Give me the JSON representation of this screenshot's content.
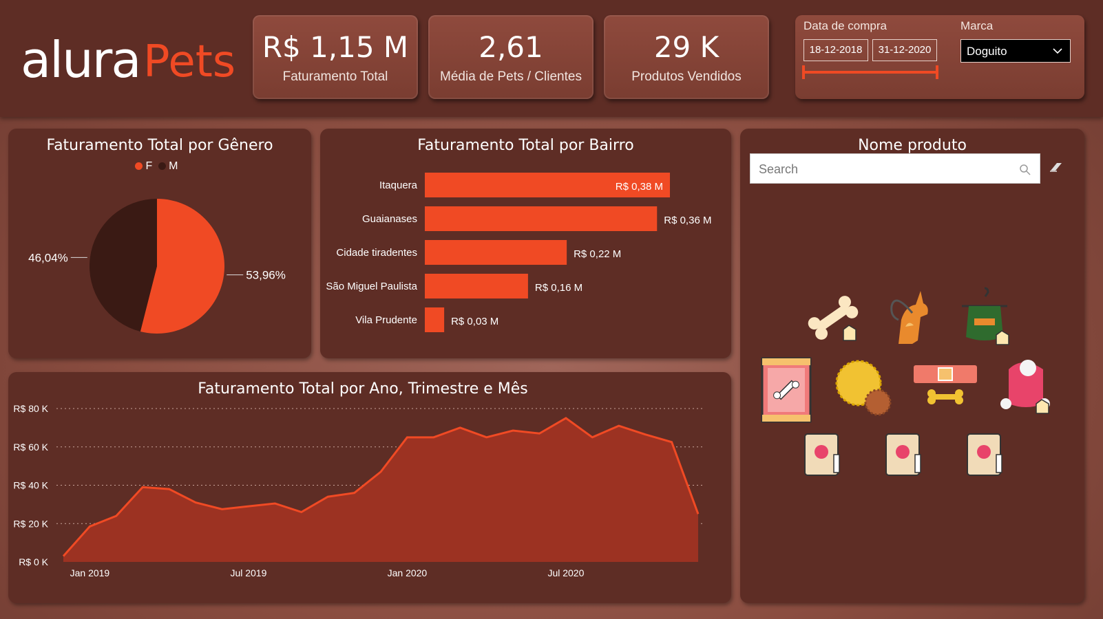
{
  "logo": {
    "alura": "alura",
    "pets": "Pets"
  },
  "kpis": [
    {
      "value": "R$ 1,15 M",
      "label": "Faturamento Total"
    },
    {
      "value": "2,61",
      "label": "Média de Pets / Clientes"
    },
    {
      "value": "29 K",
      "label": "Produtos Vendidos"
    }
  ],
  "filters": {
    "date_label": "Data de compra",
    "date_start": "18-12-2018",
    "date_end": "31-12-2020",
    "brand_label": "Marca",
    "brand_value": "Doguito"
  },
  "colors": {
    "accent": "#f04a24",
    "dark": "#3a1a14",
    "panel": "#5e2d25",
    "area": "#9c3222"
  },
  "gender_panel": {
    "title": "Faturamento Total por Gênero",
    "legend": [
      "F",
      "M"
    ]
  },
  "bairro_panel": {
    "title": "Faturamento Total por Bairro"
  },
  "time_panel": {
    "title": "Faturamento Total por Ano, Trimestre e Mês"
  },
  "product_panel": {
    "title": "Nome produto",
    "search_placeholder": "Search",
    "products": [
      "bone-toy-icon",
      "dog-leash-icon",
      "dog-vest-icon",
      "treat-bag-icon",
      "ball-toy-icon",
      "dog-collar-icon",
      "dog-coat-icon",
      "food-bag-icon",
      "food-bag-icon",
      "food-bag-icon"
    ]
  },
  "chart_data": [
    {
      "type": "pie",
      "title": "Faturamento Total por Gênero",
      "categories": [
        "F",
        "M"
      ],
      "values": [
        53.96,
        46.04
      ],
      "labels": [
        "53,96%",
        "46,04%"
      ],
      "legend": "top"
    },
    {
      "type": "bar",
      "title": "Faturamento Total por Bairro",
      "categories": [
        "Itaquera",
        "Guaianases",
        "Cidade tiradentes",
        "São Miguel Paulista",
        "Vila Prudente"
      ],
      "values": [
        0.38,
        0.36,
        0.22,
        0.16,
        0.03
      ],
      "labels": [
        "R$ 0,38 M",
        "R$ 0,36 M",
        "R$ 0,22 M",
        "R$ 0,16 M",
        "R$ 0,03 M"
      ],
      "orientation": "horizontal"
    },
    {
      "type": "area",
      "title": "Faturamento Total por Ano, Trimestre e Mês",
      "x": [
        "2018-12",
        "2019-01",
        "2019-02",
        "2019-03",
        "2019-04",
        "2019-05",
        "2019-06",
        "2019-07",
        "2019-08",
        "2019-09",
        "2019-10",
        "2019-11",
        "2019-12",
        "2020-01",
        "2020-02",
        "2020-03",
        "2020-04",
        "2020-05",
        "2020-06",
        "2020-07",
        "2020-08",
        "2020-09",
        "2020-10",
        "2020-11",
        "2020-12"
      ],
      "xticks": [
        "Jan 2019",
        "Jul 2019",
        "Jan 2020",
        "Jul 2020"
      ],
      "values": [
        3,
        18.5,
        24,
        39,
        38,
        31,
        27.5,
        29,
        30.5,
        26,
        34,
        36,
        47,
        65,
        65,
        70,
        65,
        68.5,
        67,
        75,
        65,
        71,
        66.5,
        62.5,
        25
      ],
      "yticks": [
        "R$ 0 K",
        "R$ 20 K",
        "R$ 40 K",
        "R$ 60 K",
        "R$ 80 K"
      ],
      "ylim": [
        0,
        80
      ],
      "grid": true
    }
  ]
}
